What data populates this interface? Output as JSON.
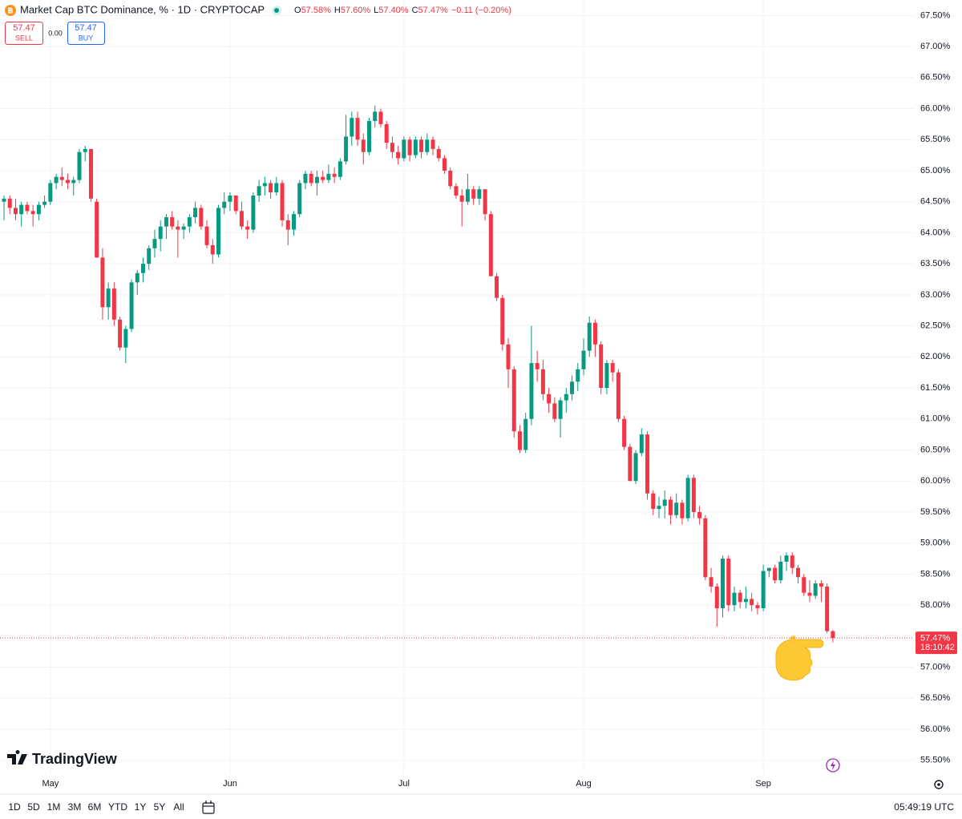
{
  "header": {
    "title": "Market Cap BTC Dominance, % · 1D · CRYPTOCAP",
    "ohlc": [
      {
        "key": "O",
        "value": "57.58%"
      },
      {
        "key": "H",
        "value": "57.60%"
      },
      {
        "key": "L",
        "value": "57.40%"
      },
      {
        "key": "C",
        "value": "57.47%"
      }
    ],
    "change": "−0.11 (−0.20%)"
  },
  "trade": {
    "sell_price": "57.47",
    "sell_label": "SELL",
    "spread": "0.00",
    "buy_price": "57.47",
    "buy_label": "BUY"
  },
  "watermark": "TradingView",
  "toolbar": {
    "ranges": [
      "1D",
      "5D",
      "1M",
      "3M",
      "6M",
      "YTD",
      "1Y",
      "5Y",
      "All"
    ],
    "time": "05:49:19 UTC"
  },
  "chart_data": {
    "type": "candlestick",
    "up_color": "#089981",
    "down_color": "#f23645",
    "categories": [
      null,
      null,
      null,
      null,
      null,
      null,
      null,
      null,
      "May",
      null,
      null,
      null,
      null,
      null,
      null,
      null,
      null,
      null,
      null,
      null,
      null,
      null,
      null,
      null,
      null,
      null,
      null,
      null,
      null,
      null,
      null,
      null,
      null,
      null,
      null,
      null,
      null,
      null,
      null,
      "Jun",
      null,
      null,
      null,
      null,
      null,
      null,
      null,
      null,
      null,
      null,
      null,
      null,
      null,
      null,
      null,
      null,
      null,
      null,
      null,
      null,
      null,
      null,
      null,
      null,
      null,
      null,
      null,
      null,
      null,
      "Jul",
      null,
      null,
      null,
      null,
      null,
      null,
      null,
      null,
      null,
      null,
      null,
      null,
      null,
      null,
      null,
      null,
      null,
      null,
      null,
      null,
      null,
      null,
      null,
      null,
      null,
      null,
      null,
      null,
      null,
      null,
      "Aug",
      null,
      null,
      null,
      null,
      null,
      null,
      null,
      null,
      null,
      null,
      null,
      null,
      null,
      null,
      null,
      null,
      null,
      null,
      null,
      null,
      null,
      null,
      null,
      null,
      null,
      null,
      null,
      null,
      null,
      null,
      "Sep",
      null,
      null,
      null,
      null,
      null,
      null,
      null,
      null,
      null,
      null,
      null,
      null
    ],
    "ohlc": [
      [
        64.5,
        64.6,
        64.2,
        64.55
      ],
      [
        64.55,
        64.6,
        64.3,
        64.4
      ],
      [
        64.4,
        64.55,
        64.2,
        64.3
      ],
      [
        64.3,
        64.5,
        64.1,
        64.45
      ],
      [
        64.45,
        64.5,
        64.3,
        64.35
      ],
      [
        64.35,
        64.45,
        64.1,
        64.3
      ],
      [
        64.3,
        64.5,
        64.2,
        64.45
      ],
      [
        64.45,
        64.6,
        64.4,
        64.5
      ],
      [
        64.5,
        64.85,
        64.45,
        64.8
      ],
      [
        64.8,
        64.95,
        64.7,
        64.9
      ],
      [
        64.9,
        65.05,
        64.75,
        64.85
      ],
      [
        64.85,
        64.95,
        64.7,
        64.8
      ],
      [
        64.8,
        64.9,
        64.6,
        64.85
      ],
      [
        64.85,
        65.35,
        64.8,
        65.3
      ],
      [
        65.3,
        65.4,
        65.15,
        65.35
      ],
      [
        65.35,
        65.35,
        64.5,
        64.55
      ],
      [
        64.5,
        64.55,
        63.6,
        63.6
      ],
      [
        63.6,
        63.75,
        62.6,
        62.8
      ],
      [
        62.8,
        63.2,
        62.6,
        63.1
      ],
      [
        63.1,
        63.2,
        62.5,
        62.6
      ],
      [
        62.6,
        62.65,
        62.1,
        62.15
      ],
      [
        62.15,
        62.5,
        61.9,
        62.45
      ],
      [
        62.45,
        63.25,
        62.4,
        63.2
      ],
      [
        63.2,
        63.4,
        63.0,
        63.35
      ],
      [
        63.35,
        63.6,
        63.2,
        63.5
      ],
      [
        63.5,
        63.8,
        63.4,
        63.75
      ],
      [
        63.75,
        64.05,
        63.6,
        63.9
      ],
      [
        63.9,
        64.2,
        63.7,
        64.1
      ],
      [
        64.1,
        64.3,
        63.9,
        64.25
      ],
      [
        64.25,
        64.35,
        64.05,
        64.1
      ],
      [
        64.1,
        64.2,
        63.6,
        64.05
      ],
      [
        64.05,
        64.15,
        63.9,
        64.1
      ],
      [
        64.1,
        64.3,
        64.0,
        64.25
      ],
      [
        64.25,
        64.5,
        64.15,
        64.4
      ],
      [
        64.4,
        64.45,
        64.05,
        64.1
      ],
      [
        64.1,
        64.2,
        63.75,
        63.8
      ],
      [
        63.8,
        63.9,
        63.5,
        63.65
      ],
      [
        63.65,
        64.45,
        63.6,
        64.4
      ],
      [
        64.4,
        64.65,
        64.3,
        64.5
      ],
      [
        64.5,
        64.65,
        64.35,
        64.6
      ],
      [
        64.6,
        64.6,
        64.3,
        64.35
      ],
      [
        64.35,
        64.5,
        64.05,
        64.1
      ],
      [
        64.1,
        64.2,
        63.9,
        64.05
      ],
      [
        64.05,
        64.65,
        64.0,
        64.6
      ],
      [
        64.6,
        64.85,
        64.5,
        64.75
      ],
      [
        64.75,
        64.9,
        64.6,
        64.8
      ],
      [
        64.8,
        64.85,
        64.55,
        64.65
      ],
      [
        64.65,
        64.9,
        64.6,
        64.8
      ],
      [
        64.8,
        64.85,
        64.1,
        64.2
      ],
      [
        64.2,
        64.3,
        63.8,
        64.05
      ],
      [
        64.05,
        64.35,
        63.95,
        64.3
      ],
      [
        64.3,
        64.85,
        64.25,
        64.8
      ],
      [
        64.8,
        65.0,
        64.7,
        64.95
      ],
      [
        64.95,
        65.0,
        64.75,
        64.8
      ],
      [
        64.8,
        65.0,
        64.6,
        64.9
      ],
      [
        64.9,
        65.0,
        64.8,
        64.85
      ],
      [
        64.85,
        65.1,
        64.8,
        64.95
      ],
      [
        64.95,
        65.05,
        64.8,
        64.9
      ],
      [
        64.9,
        65.2,
        64.85,
        65.15
      ],
      [
        65.15,
        65.9,
        65.1,
        65.55
      ],
      [
        65.55,
        65.95,
        65.4,
        65.85
      ],
      [
        65.85,
        65.95,
        65.4,
        65.5
      ],
      [
        65.5,
        65.6,
        65.1,
        65.3
      ],
      [
        65.3,
        65.85,
        65.25,
        65.8
      ],
      [
        65.8,
        66.05,
        65.7,
        65.95
      ],
      [
        65.95,
        66.0,
        65.7,
        65.75
      ],
      [
        65.75,
        65.8,
        65.35,
        65.45
      ],
      [
        65.45,
        65.55,
        65.2,
        65.3
      ],
      [
        65.3,
        65.4,
        65.1,
        65.2
      ],
      [
        65.2,
        65.55,
        65.15,
        65.5
      ],
      [
        65.5,
        65.55,
        65.15,
        65.25
      ],
      [
        65.25,
        65.55,
        65.2,
        65.5
      ],
      [
        65.5,
        65.55,
        65.2,
        65.3
      ],
      [
        65.3,
        65.6,
        65.25,
        65.5
      ],
      [
        65.5,
        65.55,
        65.25,
        65.35
      ],
      [
        65.35,
        65.4,
        65.15,
        65.2
      ],
      [
        65.2,
        65.25,
        64.95,
        65.0
      ],
      [
        65.0,
        65.05,
        64.7,
        64.75
      ],
      [
        64.75,
        64.8,
        64.55,
        64.6
      ],
      [
        64.6,
        64.7,
        64.1,
        64.5
      ],
      [
        64.5,
        64.95,
        64.45,
        64.7
      ],
      [
        64.7,
        64.75,
        64.45,
        64.55
      ],
      [
        64.55,
        64.75,
        64.45,
        64.7
      ],
      [
        64.7,
        64.7,
        64.2,
        64.3
      ],
      [
        64.3,
        64.35,
        63.3,
        63.3
      ],
      [
        63.3,
        63.35,
        62.9,
        62.95
      ],
      [
        62.95,
        63.0,
        62.1,
        62.2
      ],
      [
        62.2,
        62.3,
        61.5,
        61.8
      ],
      [
        61.8,
        61.85,
        60.7,
        60.8
      ],
      [
        60.8,
        60.9,
        60.45,
        60.5
      ],
      [
        60.5,
        61.1,
        60.45,
        61.0
      ],
      [
        61.0,
        62.5,
        60.9,
        61.9
      ],
      [
        61.9,
        62.1,
        61.6,
        61.8
      ],
      [
        61.8,
        61.95,
        61.3,
        61.4
      ],
      [
        61.4,
        61.5,
        61.1,
        61.25
      ],
      [
        61.25,
        61.35,
        60.95,
        61.0
      ],
      [
        61.0,
        61.35,
        60.7,
        61.3
      ],
      [
        61.3,
        61.5,
        61.1,
        61.4
      ],
      [
        61.4,
        61.7,
        61.3,
        61.6
      ],
      [
        61.6,
        61.9,
        61.45,
        61.8
      ],
      [
        61.8,
        62.3,
        61.7,
        62.1
      ],
      [
        62.1,
        62.65,
        62.0,
        62.55
      ],
      [
        62.55,
        62.6,
        62.0,
        62.2
      ],
      [
        62.2,
        62.25,
        61.4,
        61.5
      ],
      [
        61.5,
        61.95,
        61.4,
        61.9
      ],
      [
        61.9,
        61.95,
        61.6,
        61.75
      ],
      [
        61.75,
        61.8,
        60.95,
        61.0
      ],
      [
        61.0,
        61.05,
        60.5,
        60.55
      ],
      [
        60.55,
        60.6,
        60.0,
        60.0
      ],
      [
        60.0,
        60.5,
        59.95,
        60.45
      ],
      [
        60.45,
        60.85,
        60.4,
        60.75
      ],
      [
        60.75,
        60.8,
        59.7,
        59.8
      ],
      [
        59.8,
        59.85,
        59.45,
        59.55
      ],
      [
        59.55,
        59.75,
        59.4,
        59.6
      ],
      [
        59.6,
        59.85,
        59.4,
        59.7
      ],
      [
        59.7,
        59.75,
        59.3,
        59.45
      ],
      [
        59.45,
        59.8,
        59.4,
        59.65
      ],
      [
        59.65,
        59.7,
        59.3,
        59.4
      ],
      [
        59.4,
        60.1,
        59.35,
        60.05
      ],
      [
        60.05,
        60.1,
        59.4,
        59.5
      ],
      [
        59.5,
        59.6,
        59.3,
        59.4
      ],
      [
        59.4,
        59.45,
        58.4,
        58.45
      ],
      [
        58.45,
        58.6,
        58.2,
        58.3
      ],
      [
        58.3,
        58.35,
        57.65,
        57.95
      ],
      [
        57.95,
        58.8,
        57.8,
        58.75
      ],
      [
        58.75,
        58.8,
        57.9,
        58.0
      ],
      [
        58.0,
        58.3,
        57.9,
        58.2
      ],
      [
        58.2,
        58.25,
        57.95,
        58.05
      ],
      [
        58.05,
        58.3,
        57.95,
        58.1
      ],
      [
        58.1,
        58.2,
        57.9,
        58.0
      ],
      [
        58.0,
        58.05,
        57.85,
        57.95
      ],
      [
        57.95,
        58.65,
        57.9,
        58.55
      ],
      [
        58.55,
        58.6,
        58.45,
        58.6
      ],
      [
        58.6,
        58.65,
        58.35,
        58.4
      ],
      [
        58.4,
        58.8,
        58.35,
        58.7
      ],
      [
        58.7,
        58.85,
        58.55,
        58.8
      ],
      [
        58.8,
        58.85,
        58.5,
        58.6
      ],
      [
        58.6,
        58.65,
        58.35,
        58.45
      ],
      [
        58.45,
        58.5,
        58.15,
        58.2
      ],
      [
        58.2,
        58.4,
        58.05,
        58.15
      ],
      [
        58.15,
        58.4,
        58.1,
        58.35
      ],
      [
        58.35,
        58.4,
        58.05,
        58.3
      ],
      [
        58.3,
        58.35,
        57.55,
        57.58
      ],
      [
        57.58,
        57.6,
        57.4,
        57.47
      ]
    ],
    "ylim": [
      55.29,
      67.75
    ],
    "yticks": [
      {
        "value": 55.5,
        "label": "55.50%"
      },
      {
        "value": 56,
        "label": "56.00%"
      },
      {
        "value": 56.5,
        "label": "56.50%"
      },
      {
        "value": 57,
        "label": "57.00%"
      },
      {
        "value": 57.5,
        "label": "57.50%"
      },
      {
        "value": 58,
        "label": "58.00%"
      },
      {
        "value": 58.5,
        "label": "58.50%"
      },
      {
        "value": 59,
        "label": "59.00%"
      },
      {
        "value": 59.5,
        "label": "59.50%"
      },
      {
        "value": 60,
        "label": "60.00%"
      },
      {
        "value": 60.5,
        "label": "60.50%"
      },
      {
        "value": 61,
        "label": "61.00%"
      },
      {
        "value": 61.5,
        "label": "61.50%"
      },
      {
        "value": 62,
        "label": "62.00%"
      },
      {
        "value": 62.5,
        "label": "62.50%"
      },
      {
        "value": 63,
        "label": "63.00%"
      },
      {
        "value": 63.5,
        "label": "63.50%"
      },
      {
        "value": 64,
        "label": "64.00%"
      },
      {
        "value": 64.5,
        "label": "64.50%"
      },
      {
        "value": 65,
        "label": "65.00%"
      },
      {
        "value": 65.5,
        "label": "65.50%"
      },
      {
        "value": 66,
        "label": "66.00%"
      },
      {
        "value": 66.5,
        "label": "66.50%"
      },
      {
        "value": 67,
        "label": "67.00%"
      },
      {
        "value": 67.5,
        "label": "67.50%"
      }
    ],
    "grid": true,
    "last_price": {
      "value": 57.47,
      "label": "57.47%"
    },
    "countdown": "18:10:42"
  }
}
